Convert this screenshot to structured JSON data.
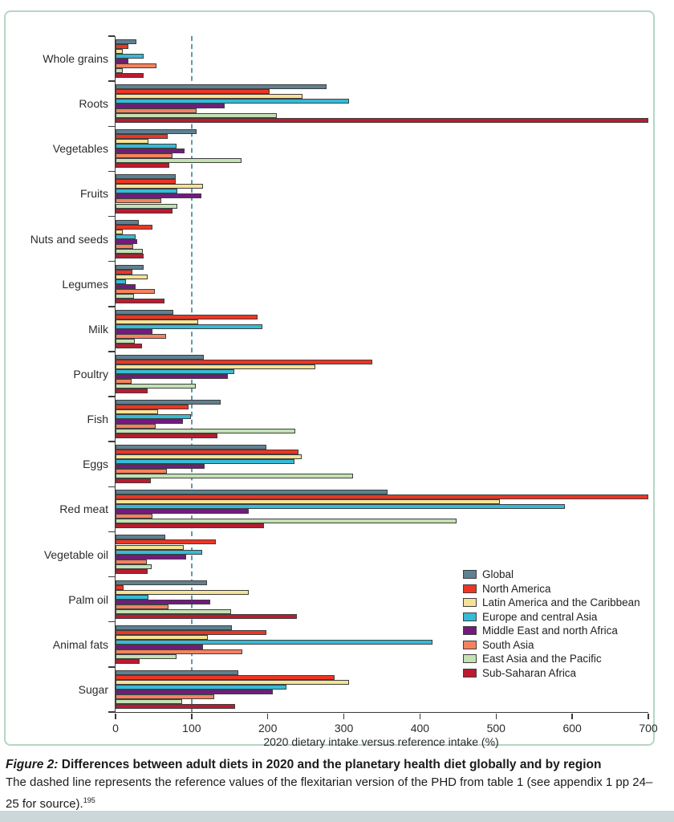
{
  "caption": {
    "figure_label": "Figure 2:",
    "title": " Differences between adult diets in 2020 and the planetary health diet globally and by region",
    "body": "The dashed line represents the reference values of the flexitarian version of the PHD from table 1 (see appendix 1 pp 24–25 for source).",
    "reference_superscript": "195"
  },
  "colors": {
    "panel_border": "#b5d6c3",
    "axis": "#3a3a3a",
    "bar_border": "#3f3f3f",
    "dashed_reference": "#5f9ab0",
    "footer_band": "#ccd7da"
  },
  "chart_data": {
    "type": "bar",
    "orientation": "horizontal",
    "xlabel": "2020 dietary intake versus reference intake (%)",
    "xlim": [
      0,
      700
    ],
    "xticks": [
      0,
      100,
      200,
      300,
      400,
      500,
      600,
      700
    ],
    "grid": false,
    "legend_position": "lower right",
    "reference_line": {
      "value": 100,
      "style": "dashed",
      "color": "#5f9ab0",
      "meaning": "reference intake (100%)"
    },
    "categories": [
      "Whole grains",
      "Roots",
      "Vegetables",
      "Fruits",
      "Nuts and seeds",
      "Legumes",
      "Milk",
      "Poultry",
      "Fish",
      "Eggs",
      "Red meat",
      "Vegetable oil",
      "Palm oil",
      "Animal fats",
      "Sugar"
    ],
    "series": [
      {
        "name": "Global",
        "color": "#5e8191",
        "values": [
          27,
          277,
          107,
          79,
          31,
          37,
          76,
          116,
          138,
          198,
          357,
          65,
          120,
          153,
          161
        ]
      },
      {
        "name": "North America",
        "color": "#ee3524",
        "values": [
          17,
          202,
          69,
          79,
          49,
          22,
          187,
          337,
          96,
          240,
          700,
          132,
          11,
          198,
          288
        ]
      },
      {
        "name": "Latin America and the Caribbean",
        "color": "#f6e294",
        "values": [
          10,
          246,
          43,
          115,
          10,
          42,
          109,
          262,
          56,
          245,
          505,
          90,
          175,
          121,
          307
        ]
      },
      {
        "name": "Europe and central Asia",
        "color": "#35bbd7",
        "values": [
          37,
          307,
          80,
          81,
          26,
          14,
          193,
          156,
          99,
          235,
          590,
          114,
          43,
          416,
          225
        ]
      },
      {
        "name": "Middle East and north Africa",
        "color": "#731a7e",
        "values": [
          17,
          143,
          91,
          113,
          28,
          26,
          48,
          148,
          89,
          117,
          175,
          93,
          124,
          115,
          207
        ]
      },
      {
        "name": "South Asia",
        "color": "#f5825f",
        "values": [
          54,
          106,
          75,
          60,
          23,
          52,
          66,
          21,
          53,
          67,
          49,
          41,
          70,
          167,
          130
        ]
      },
      {
        "name": "East Asia and the Pacific",
        "color": "#c3e1b3",
        "values": [
          9,
          212,
          166,
          81,
          36,
          24,
          25,
          105,
          236,
          312,
          448,
          47,
          152,
          80,
          88
        ]
      },
      {
        "name": "Sub-Saharan Africa",
        "color": "#bc1a2e",
        "values": [
          37,
          700,
          71,
          75,
          37,
          64,
          35,
          42,
          134,
          46,
          195,
          42,
          238,
          32,
          157
        ]
      }
    ],
    "notes": "Bars for Sub-Saharan Africa Roots and North America Red meat are clipped at the 700% axis limit"
  }
}
